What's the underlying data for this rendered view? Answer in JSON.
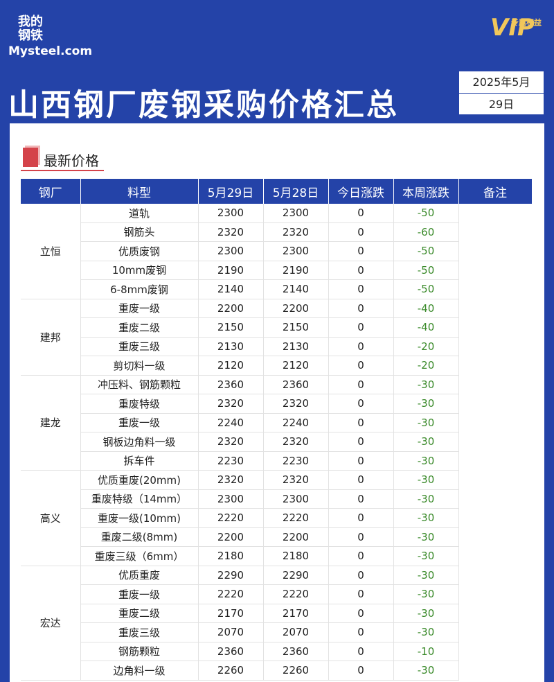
{
  "header": {
    "logo_cn": [
      "我的",
      "钢铁"
    ],
    "logo_en": "Mysteel.com",
    "vip": "VIP",
    "vip_sub": "专属权益",
    "title": "山西钢厂废钢采购价格汇总",
    "date_month": "2025年5月",
    "date_day": "29日"
  },
  "section": "最新价格",
  "table": {
    "headers": [
      "钢厂",
      "料型",
      "5月29日",
      "5月28日",
      "今日涨跌",
      "本周涨跌",
      "备注"
    ],
    "groups": [
      {
        "mill": "立恒",
        "rows": [
          [
            "道轨",
            "2300",
            "2300",
            "0",
            "-50"
          ],
          [
            "钢筋头",
            "2320",
            "2320",
            "0",
            "-60"
          ],
          [
            "优质废钢",
            "2300",
            "2300",
            "0",
            "-50"
          ],
          [
            "10mm废钢",
            "2190",
            "2190",
            "0",
            "-50"
          ],
          [
            "6-8mm废钢",
            "2140",
            "2140",
            "0",
            "-50"
          ]
        ]
      },
      {
        "mill": "建邦",
        "rows": [
          [
            "重废一级",
            "2200",
            "2200",
            "0",
            "-40"
          ],
          [
            "重废二级",
            "2150",
            "2150",
            "0",
            "-40"
          ],
          [
            "重废三级",
            "2130",
            "2130",
            "0",
            "-20"
          ],
          [
            "剪切料一级",
            "2120",
            "2120",
            "0",
            "-20"
          ]
        ]
      },
      {
        "mill": "建龙",
        "rows": [
          [
            "冲压料、钢筋颗粒",
            "2360",
            "2360",
            "0",
            "-30"
          ],
          [
            "重废特级",
            "2320",
            "2320",
            "0",
            "-30"
          ],
          [
            "重废一级",
            "2240",
            "2240",
            "0",
            "-30"
          ],
          [
            "钢板边角料一级",
            "2320",
            "2320",
            "0",
            "-30"
          ],
          [
            "拆车件",
            "2230",
            "2230",
            "0",
            "-30"
          ]
        ]
      },
      {
        "mill": "高义",
        "rows": [
          [
            "优质重废(20mm)",
            "2320",
            "2320",
            "0",
            "-30"
          ],
          [
            "重废特级（14mm）",
            "2300",
            "2300",
            "0",
            "-30"
          ],
          [
            "重废一级(10mm)",
            "2220",
            "2220",
            "0",
            "-30"
          ],
          [
            "重废二级(8mm)",
            "2200",
            "2200",
            "0",
            "-30"
          ],
          [
            "重废三级（6mm）",
            "2180",
            "2180",
            "0",
            "-30"
          ]
        ]
      },
      {
        "mill": "宏达",
        "rows": [
          [
            "优质重废",
            "2290",
            "2290",
            "0",
            "-30"
          ],
          [
            "重废一级",
            "2220",
            "2220",
            "0",
            "-30"
          ],
          [
            "重废二级",
            "2170",
            "2170",
            "0",
            "-30"
          ],
          [
            "重废三级",
            "2070",
            "2070",
            "0",
            "-30"
          ],
          [
            "钢筋颗粒",
            "2360",
            "2360",
            "0",
            "-10"
          ],
          [
            "边角料一级",
            "2260",
            "2260",
            "0",
            "-30"
          ]
        ]
      }
    ]
  }
}
